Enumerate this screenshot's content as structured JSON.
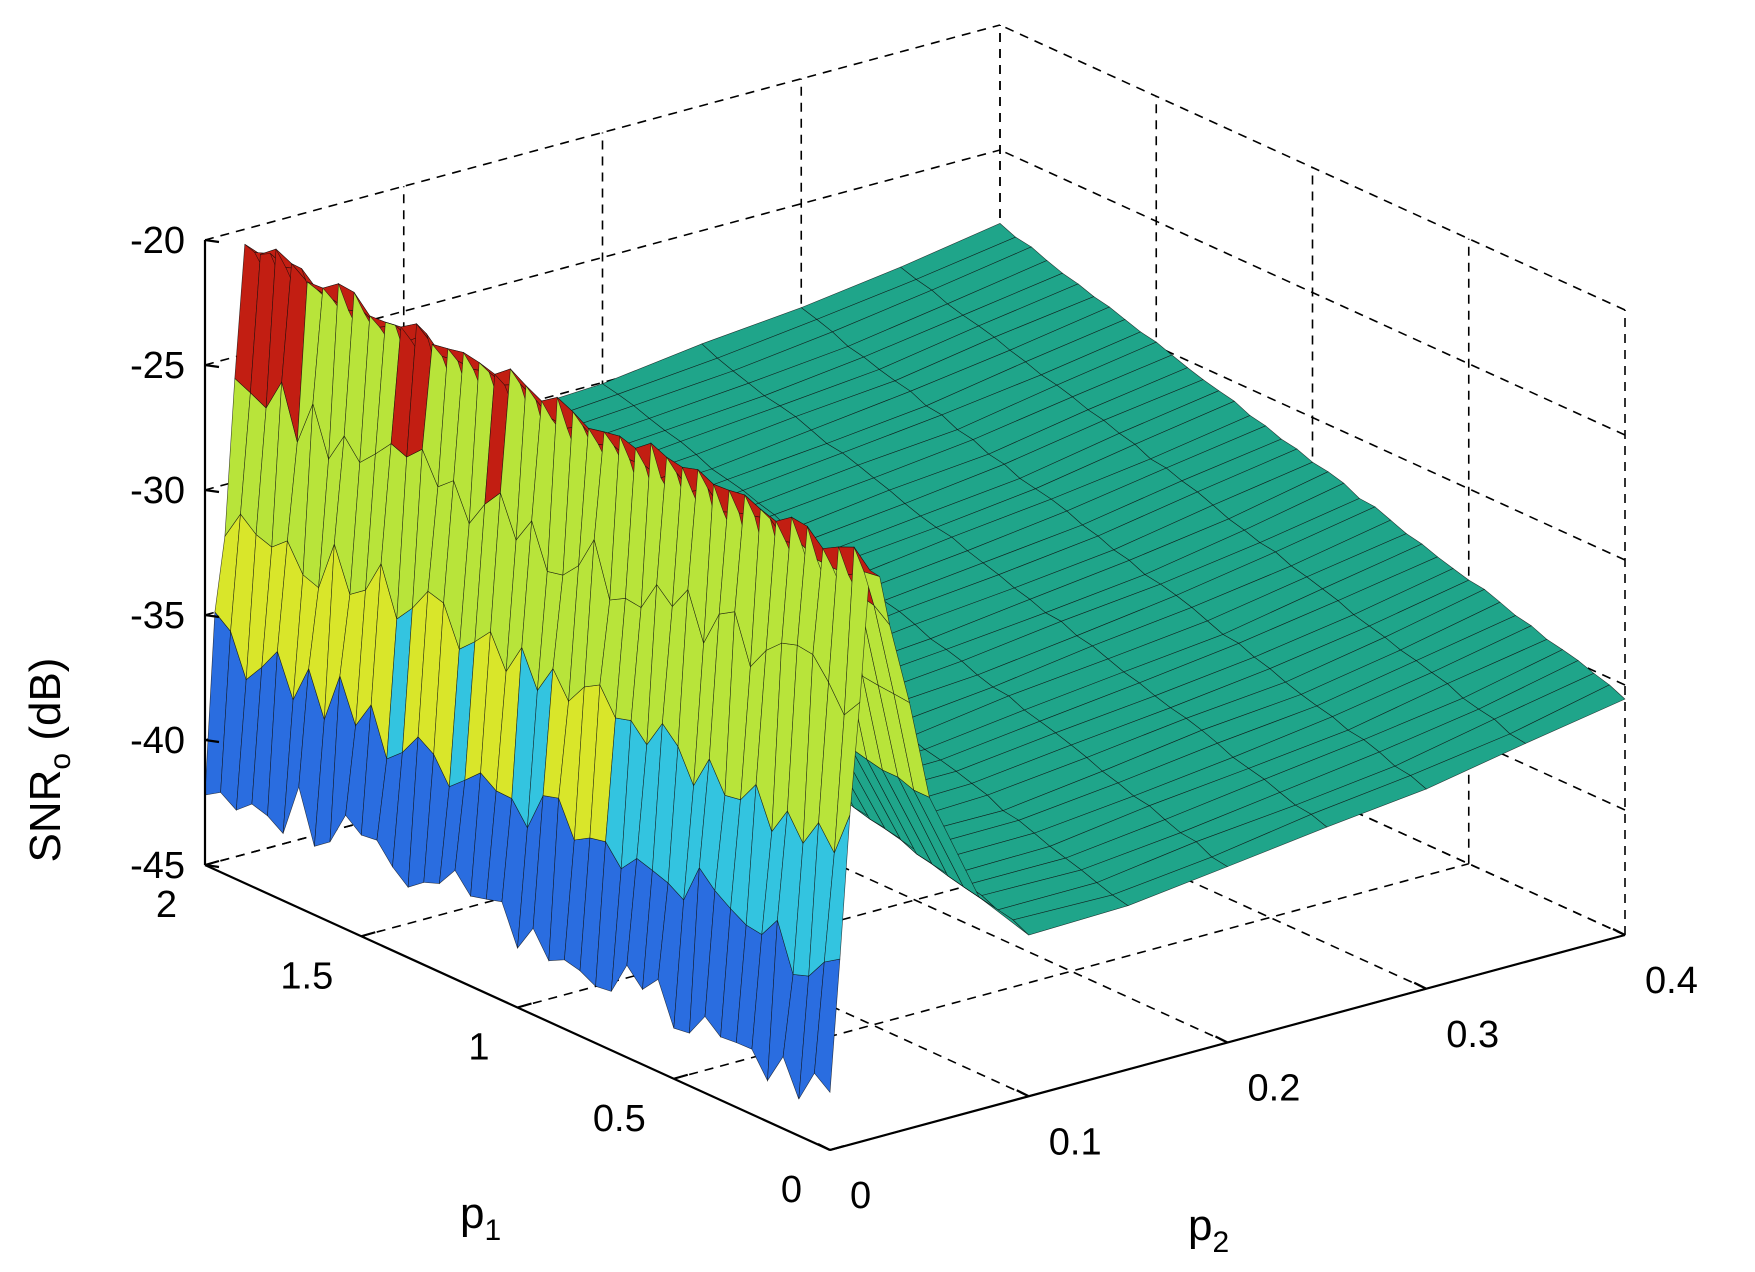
{
  "chart_data": {
    "type": "surface3d",
    "xlabel": "p",
    "xlabel_sub": "2",
    "ylabel": "p",
    "ylabel_sub": "1",
    "zlabel": "SNR",
    "zlabel_sub": "o",
    "zlabel_suffix": " (dB)",
    "xlim": [
      0,
      0.4
    ],
    "ylim": [
      0,
      2
    ],
    "zlim": [
      -45,
      -20
    ],
    "xticks": [
      0,
      0.1,
      0.2,
      0.3,
      0.4
    ],
    "xtick_labels": [
      "0",
      "0.1",
      "0.2",
      "0.3",
      "0.4"
    ],
    "yticks": [
      0,
      0.5,
      1,
      1.5,
      2
    ],
    "ytick_labels": [
      "0",
      "0.5",
      "1",
      "1.5",
      "2"
    ],
    "zticks": [
      -45,
      -40,
      -35,
      -30,
      -25,
      -20
    ],
    "ztick_labels": [
      "-45",
      "-40",
      "-35",
      "-30",
      "-25",
      "-20"
    ],
    "grid": true,
    "colormap": "jet",
    "surface": {
      "p2": [
        0,
        0.005,
        0.01,
        0.015,
        0.02,
        0.025,
        0.03,
        0.04,
        0.05,
        0.075,
        0.1,
        0.15,
        0.2,
        0.25,
        0.3,
        0.35,
        0.4
      ],
      "p1": [
        0,
        0.25,
        0.5,
        0.75,
        1,
        1.25,
        1.5,
        1.75,
        2
      ],
      "snr_p1_0": [
        -43,
        -38,
        -33,
        -27.5,
        -22,
        -23,
        -24.5,
        -28,
        -32,
        -36.5,
        -38.5,
        -38.5,
        -38,
        -37.5,
        -37,
        -36.3,
        -35.5
      ],
      "snr_p1_2": [
        -41,
        -36,
        -31,
        -26,
        -20.5,
        -21,
        -22,
        -25,
        -28,
        -30,
        -30.5,
        -30.3,
        -30,
        -29.6,
        -29.2,
        -28.6,
        -28
      ]
    },
    "colors": {
      "deep-blue": "#1c2fb5",
      "blue": "#2a6de0",
      "cyan": "#33c4e0",
      "green-yellow": "#b8e43a",
      "yellow": "#d9e62a",
      "red": "#c21e12",
      "plateau-teal": "#1fa58a"
    }
  }
}
